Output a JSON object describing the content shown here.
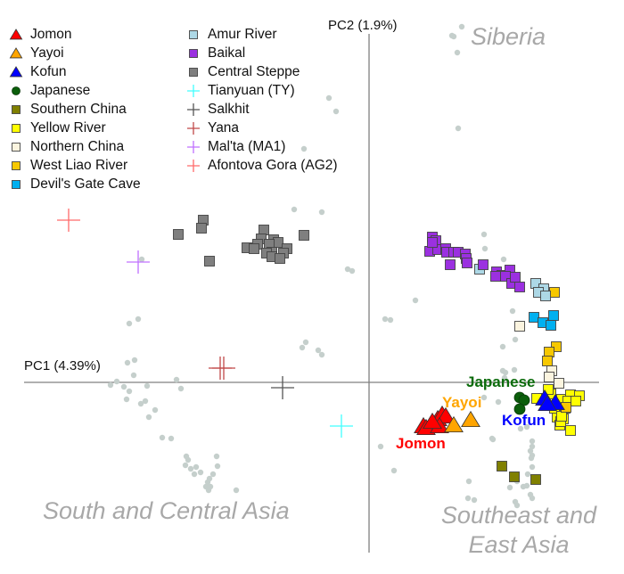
{
  "chart_data": {
    "type": "scatter",
    "xlabel": "PC1 (4.39%)",
    "ylabel": "PC2 (1.9%)",
    "xlim": [
      -3.87,
      2.58
    ],
    "ylim": [
      -1.91,
      4.05
    ],
    "grid": false,
    "legend_placement": "top-left",
    "region_labels": [
      "Siberia",
      "South and Central Asia",
      "Southeast and",
      "East Asia"
    ],
    "group_labels": {
      "japanese": "Japanese",
      "yayoi": "Yayoi",
      "kofun": "Kofun",
      "jomon": "Jomon"
    },
    "reference": {
      "color": "#c5cfcc",
      "marker": "dot",
      "points": [
        [
          -0.84,
          1.94
        ],
        [
          -0.53,
          1.91
        ],
        [
          -0.24,
          1.27
        ],
        [
          -0.19,
          1.25
        ],
        [
          -2.59,
          0.71
        ],
        [
          -2.69,
          0.66
        ],
        [
          -2.55,
          1.38
        ],
        [
          -0.71,
          0.45
        ],
        [
          -0.75,
          0.39
        ],
        [
          -0.57,
          0.36
        ],
        [
          -0.53,
          0.31
        ],
        [
          -2.71,
          0.22
        ],
        [
          -2.63,
          0.25
        ],
        [
          -2.64,
          0.08
        ],
        [
          -2.9,
          -0.03
        ],
        [
          -2.83,
          0.01
        ],
        [
          -2.75,
          -0.05
        ],
        [
          -2.69,
          -0.1
        ],
        [
          -2.72,
          -0.19
        ],
        [
          -2.49,
          -0.04
        ],
        [
          -2.16,
          0.03
        ],
        [
          -2.11,
          -0.07
        ],
        [
          -2.56,
          -0.24
        ],
        [
          -2.51,
          -0.21
        ],
        [
          -2.4,
          -0.31
        ],
        [
          -2.47,
          -0.39
        ],
        [
          -2.32,
          -0.62
        ],
        [
          -2.22,
          -0.63
        ],
        [
          -2.05,
          -0.83
        ],
        [
          -2.03,
          -0.87
        ],
        [
          -2.06,
          -0.93
        ],
        [
          -1.94,
          -0.95
        ],
        [
          -2.0,
          -0.97
        ],
        [
          -1.89,
          -1.01
        ],
        [
          -1.96,
          -1.03
        ],
        [
          -1.71,
          -0.83
        ],
        [
          -1.7,
          -0.94
        ],
        [
          -1.75,
          -1.03
        ],
        [
          -1.79,
          -1.08
        ],
        [
          -1.81,
          -1.12
        ],
        [
          -1.83,
          -1.17
        ],
        [
          -1.78,
          -1.17
        ],
        [
          -1.8,
          -1.21
        ],
        [
          -1.49,
          -1.21
        ],
        [
          1.04,
          3.99
        ],
        [
          0.93,
          3.89
        ],
        [
          0.95,
          3.88
        ],
        [
          0.99,
          3.7
        ],
        [
          -0.45,
          3.19
        ],
        [
          -0.37,
          3.04
        ],
        [
          -0.73,
          2.62
        ],
        [
          1.0,
          2.85
        ],
        [
          1.29,
          1.66
        ],
        [
          1.3,
          1.5
        ],
        [
          1.51,
          1.38
        ],
        [
          0.52,
          0.92
        ],
        [
          0.18,
          0.71
        ],
        [
          0.24,
          0.7
        ],
        [
          1.61,
          0.8
        ],
        [
          1.64,
          0.48
        ],
        [
          1.5,
          0.4
        ],
        [
          1.63,
          0.14
        ],
        [
          1.5,
          0.13
        ],
        [
          1.53,
          0.11
        ],
        [
          1.52,
          0.05
        ],
        [
          1.29,
          -0.17
        ],
        [
          1.45,
          -0.22
        ],
        [
          1.39,
          -0.64
        ],
        [
          0.13,
          -0.72
        ],
        [
          0.28,
          -0.99
        ],
        [
          1.12,
          -1.11
        ],
        [
          1.38,
          -0.63
        ],
        [
          1.7,
          -0.52
        ],
        [
          1.77,
          -0.5
        ],
        [
          1.83,
          -0.66
        ],
        [
          1.83,
          -0.72
        ],
        [
          1.81,
          -0.77
        ],
        [
          1.83,
          -0.82
        ],
        [
          1.82,
          -0.85
        ],
        [
          1.83,
          -0.95
        ],
        [
          1.78,
          -1.03
        ],
        [
          1.58,
          -1.18
        ],
        [
          1.73,
          -1.17
        ],
        [
          1.77,
          -1.16
        ],
        [
          1.66,
          -1.11
        ],
        [
          1.81,
          -1.26
        ],
        [
          1.83,
          -1.3
        ],
        [
          1.11,
          -1.3
        ],
        [
          1.18,
          -1.32
        ],
        [
          1.64,
          -1.34
        ],
        [
          1.66,
          -1.38
        ]
      ]
    },
    "series": [
      {
        "name": "Jomon",
        "marker": "triangle",
        "color": "#ff0000",
        "points": [
          [
            0.61,
            -0.49
          ],
          [
            0.64,
            -0.51
          ],
          [
            0.77,
            -0.41
          ],
          [
            0.82,
            -0.36
          ],
          [
            0.86,
            -0.38
          ],
          [
            0.79,
            -0.49
          ],
          [
            0.71,
            -0.44
          ]
        ]
      },
      {
        "name": "Yayoi",
        "marker": "triangle",
        "color": "#ffa500",
        "points": [
          [
            0.95,
            -0.48
          ],
          [
            1.14,
            -0.42
          ]
        ]
      },
      {
        "name": "Kofun",
        "marker": "triangle",
        "color": "#0000ff",
        "points": [
          [
            1.97,
            -0.18
          ],
          [
            2.09,
            -0.23
          ],
          [
            2.0,
            -0.24
          ]
        ]
      },
      {
        "name": "Japanese",
        "marker": "circle",
        "color": "#0b5e0b",
        "points": [
          [
            1.69,
            -0.17
          ],
          [
            1.74,
            -0.2
          ],
          [
            1.69,
            -0.3
          ]
        ]
      },
      {
        "name": "Southern China",
        "marker": "square",
        "color": "#808000",
        "points": [
          [
            1.49,
            -0.94
          ],
          [
            1.63,
            -1.06
          ],
          [
            1.87,
            -1.09
          ]
        ]
      },
      {
        "name": "Yellow River",
        "marker": "square",
        "color": "#ffff00",
        "points": [
          [
            1.96,
            -0.18
          ],
          [
            2.04,
            -0.13
          ],
          [
            2.16,
            -0.19
          ],
          [
            2.26,
            -0.14
          ],
          [
            2.36,
            -0.15
          ],
          [
            2.23,
            -0.21
          ],
          [
            2.2,
            -0.29
          ],
          [
            2.11,
            -0.39
          ],
          [
            2.14,
            -0.48
          ],
          [
            2.18,
            -0.41
          ],
          [
            2.26,
            -0.54
          ],
          [
            2.08,
            -0.29
          ],
          [
            2.01,
            -0.08
          ],
          [
            2.32,
            -0.21
          ],
          [
            2.15,
            -0.44
          ],
          [
            2.16,
            -0.38
          ],
          [
            1.88,
            -0.18
          ]
        ]
      },
      {
        "name": "Northern China",
        "marker": "square",
        "color": "#fbf4df",
        "points": [
          [
            1.69,
            0.63
          ],
          [
            2.05,
            0.13
          ],
          [
            2.02,
            0.06
          ],
          [
            2.13,
            -0.01
          ]
        ]
      },
      {
        "name": "West Liao River",
        "marker": "square",
        "color": "#f7c800",
        "points": [
          [
            2.08,
            1.01
          ],
          [
            2.1,
            0.4
          ],
          [
            2.02,
            0.34
          ],
          [
            2.0,
            0.24
          ],
          [
            2.21,
            -0.28
          ]
        ]
      },
      {
        "name": "Devil's Gate Cave",
        "marker": "square",
        "color": "#00b0f0",
        "points": [
          [
            1.85,
            0.73
          ],
          [
            1.95,
            0.67
          ],
          [
            2.04,
            0.64
          ],
          [
            2.07,
            0.75
          ]
        ]
      },
      {
        "name": "Amur River",
        "marker": "square",
        "color": "#add8e6",
        "points": [
          [
            1.24,
            1.27
          ],
          [
            1.87,
            1.11
          ],
          [
            1.96,
            1.05
          ],
          [
            1.9,
            1.01
          ],
          [
            1.98,
            0.97
          ]
        ]
      },
      {
        "name": "Baikal",
        "marker": "square",
        "color": "#9b30e0",
        "points": [
          [
            0.71,
            1.63
          ],
          [
            0.75,
            1.59
          ],
          [
            0.68,
            1.47
          ],
          [
            0.77,
            1.49
          ],
          [
            0.86,
            1.5
          ],
          [
            0.87,
            1.46
          ],
          [
            0.95,
            1.46
          ],
          [
            1.0,
            1.46
          ],
          [
            1.08,
            1.44
          ],
          [
            1.09,
            1.39
          ],
          [
            1.1,
            1.34
          ],
          [
            0.91,
            1.32
          ],
          [
            1.28,
            1.32
          ],
          [
            1.43,
            1.24
          ],
          [
            1.49,
            1.2
          ],
          [
            1.58,
            1.26
          ],
          [
            1.53,
            1.19
          ],
          [
            1.6,
            1.11
          ],
          [
            1.69,
            1.07
          ],
          [
            1.64,
            1.18
          ],
          [
            1.42,
            1.19
          ],
          [
            0.71,
            1.57
          ]
        ]
      },
      {
        "name": "Central Steppe",
        "marker": "square",
        "color": "#7f7f7f",
        "points": [
          [
            -1.86,
            1.82
          ],
          [
            -1.88,
            1.73
          ],
          [
            -2.14,
            1.66
          ],
          [
            -1.79,
            1.36
          ],
          [
            -0.73,
            1.65
          ],
          [
            -1.18,
            1.71
          ],
          [
            -1.21,
            1.61
          ],
          [
            -1.07,
            1.6
          ],
          [
            -1.02,
            1.57
          ],
          [
            -1.12,
            1.55
          ],
          [
            -1.25,
            1.55
          ],
          [
            -1.37,
            1.51
          ],
          [
            -1.29,
            1.5
          ],
          [
            -0.92,
            1.5
          ],
          [
            -0.96,
            1.45
          ],
          [
            -1.09,
            1.46
          ],
          [
            -1.15,
            1.45
          ],
          [
            -1.09,
            1.41
          ],
          [
            -1.0,
            1.39
          ]
        ]
      },
      {
        "name": "Tianyuan (TY)",
        "marker": "cross",
        "color": "#40ffff",
        "points": [
          [
            -0.31,
            -0.49
          ]
        ]
      },
      {
        "name": "Salkhit",
        "marker": "cross",
        "color": "#555555",
        "points": [
          [
            -0.97,
            -0.06
          ]
        ]
      },
      {
        "name": "Yana",
        "marker": "cross",
        "color": "#c04848",
        "points": [
          [
            -1.67,
            0.16
          ],
          [
            -1.63,
            0.16
          ]
        ]
      },
      {
        "name": "Mal'ta (MA1)",
        "marker": "cross",
        "color": "#c070ff",
        "points": [
          [
            -2.59,
            1.35
          ]
        ]
      },
      {
        "name": "Afontova Gora (AG2)",
        "marker": "cross",
        "color": "#ff6a6a",
        "points": [
          [
            -3.37,
            1.82
          ]
        ]
      }
    ]
  }
}
